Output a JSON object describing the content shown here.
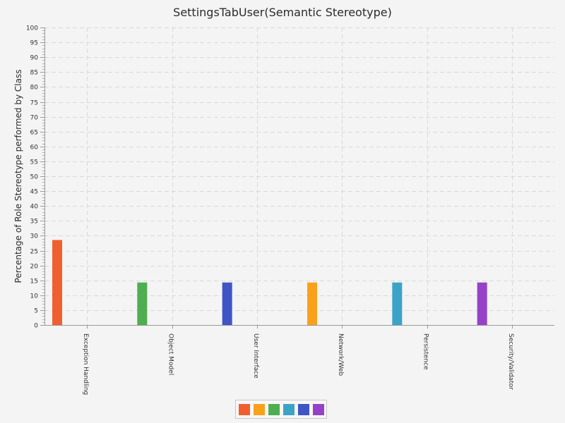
{
  "chart_data": {
    "type": "bar",
    "title": "SettingsTabUser(Semantic Stereotype)",
    "xlabel": "",
    "ylabel": "Percentage of Role Stereotype performed by Class",
    "ylim": [
      0,
      100
    ],
    "ytick_step": 5,
    "grid": true,
    "legend_position": "bottom",
    "categories": [
      "Exception Handling",
      "Object Model",
      "User Interface",
      "Network/Web",
      "Persistence",
      "Security/Validator"
    ],
    "series": [
      {
        "values": [
          28.57,
          0,
          0,
          0,
          0,
          0
        ],
        "color": "#f0602f"
      },
      {
        "values": [
          0,
          0,
          0,
          14.29,
          0,
          0
        ],
        "color": "#f9a11b"
      },
      {
        "values": [
          0,
          14.29,
          0,
          0,
          0,
          0
        ],
        "color": "#4fae50"
      },
      {
        "values": [
          0,
          0,
          0,
          0,
          14.29,
          0
        ],
        "color": "#3ca3c7"
      },
      {
        "values": [
          0,
          0,
          14.29,
          0,
          0,
          0
        ],
        "color": "#3f55c6"
      },
      {
        "values": [
          0,
          0,
          0,
          0,
          0,
          14.29
        ],
        "color": "#9542c8"
      }
    ]
  }
}
